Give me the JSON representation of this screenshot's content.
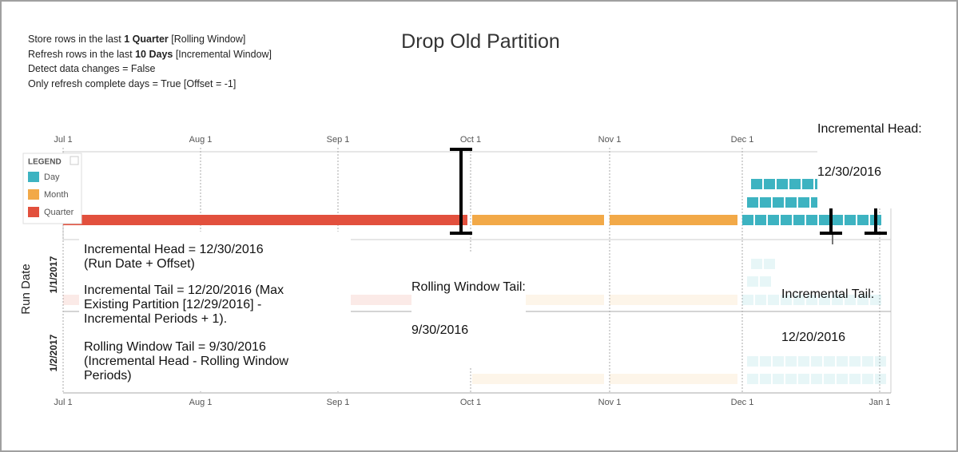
{
  "title": "Drop Old Partition",
  "settings": [
    {
      "before": "Store rows in the last ",
      "bold": "1 Quarter",
      "after": " [Rolling Window]"
    },
    {
      "before": "Refresh rows in the last ",
      "bold": "10 Days",
      "after": " [Incremental Window]"
    },
    {
      "text": "Detect data changes = False"
    },
    {
      "text": "Only refresh complete days = True [Offset = -1]"
    }
  ],
  "date_axis": [
    "Jul 1",
    "Aug 1",
    "Sep 1",
    "Oct 1",
    "Nov 1",
    "Dec 1",
    "Jan 1"
  ],
  "legend": {
    "title": "LEGEND",
    "items": [
      {
        "label": "Day",
        "color": "#3db3c1"
      },
      {
        "label": "Month",
        "color": "#f2a948"
      },
      {
        "label": "Quarter",
        "color": "#e2503d"
      }
    ]
  },
  "run_date_axis": {
    "title": "Run Date",
    "categories": [
      "1/1/2017",
      "1/2/2017"
    ]
  },
  "annotations": {
    "incremental_head": [
      "Incremental Head:",
      "12/30/2016"
    ],
    "rolling_window_tail": [
      "Rolling Window Tail:",
      "9/30/2016"
    ],
    "incremental_tail": [
      "Incremental Tail:",
      "12/20/2016"
    ]
  },
  "notes": [
    [
      "Incremental Head = 12/30/2016",
      "(Run Date + Offset)"
    ],
    [
      "Incremental Tail = 12/20/2016 (Max",
      "Existing Partition [12/29/2016] -",
      "Incremental Periods + 1)."
    ],
    [
      "Rolling Window Tail = 9/30/2016",
      "(Incremental Head - Rolling Window",
      "Periods)"
    ]
  ]
}
